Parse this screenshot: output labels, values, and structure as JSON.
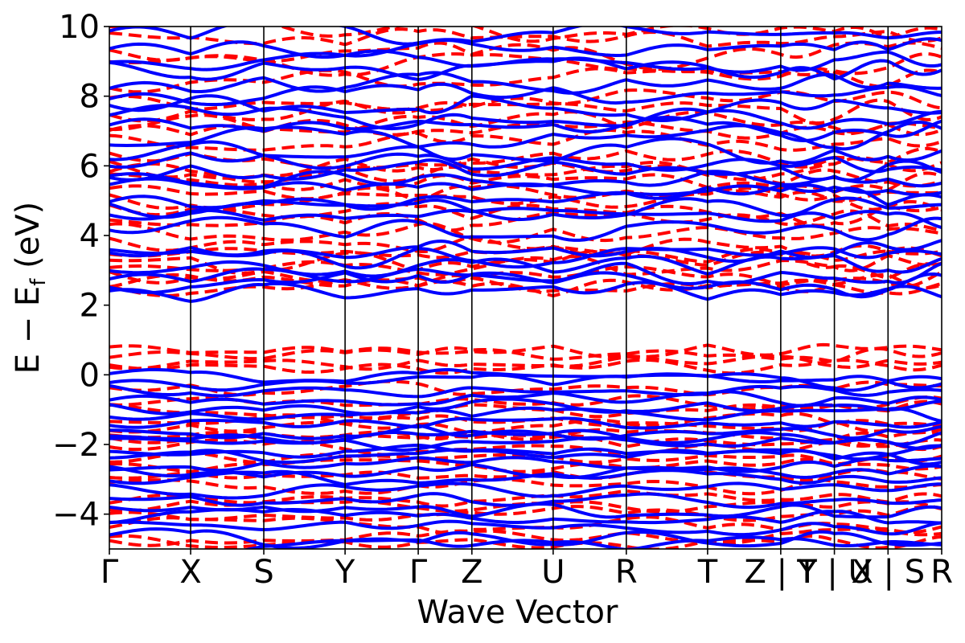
{
  "chart_data": {
    "type": "line",
    "xlabel": "Wave Vector",
    "ylabel_main": "E − E",
    "ylabel_sub": "f",
    "ylabel_unit": " (eV)",
    "ylim": [
      -5,
      10
    ],
    "yticks": [
      -4,
      -2,
      0,
      2,
      4,
      6,
      8,
      10
    ],
    "kpoints": [
      {
        "label": "Γ",
        "pos": 0.0
      },
      {
        "label": "X",
        "pos": 1.0
      },
      {
        "label": "S",
        "pos": 1.9
      },
      {
        "label": "Y",
        "pos": 2.9
      },
      {
        "label": "Γ",
        "pos": 3.8
      },
      {
        "label": "Z",
        "pos": 4.46
      },
      {
        "label": "U",
        "pos": 5.46
      },
      {
        "label": "R",
        "pos": 6.36
      },
      {
        "label": "T",
        "pos": 7.36
      },
      {
        "label": "Z | Y",
        "pos": 8.26
      },
      {
        "label": "T | U",
        "pos": 8.92
      },
      {
        "label": "X | S",
        "pos": 9.58
      },
      {
        "label": "R",
        "pos": 10.24
      }
    ],
    "grid": false,
    "series": [
      {
        "style": "dashed",
        "color": "#ff0000",
        "bands_conduction": [
          2.45,
          2.6,
          2.85,
          3.05,
          3.25,
          3.45,
          3.75,
          4.05,
          4.4,
          4.6,
          5.0,
          5.2,
          5.5,
          5.75,
          6.0,
          6.25,
          6.7,
          7.0,
          7.25,
          7.6,
          7.9,
          8.5,
          8.9,
          9.2,
          9.6,
          9.9
        ],
        "bands_valence": [
          0.7,
          0.55,
          0.4,
          0.25,
          -0.4,
          -0.7,
          -1.0,
          -1.3,
          -1.5,
          -1.7,
          -1.9,
          -2.1,
          -2.4,
          -2.6,
          -2.9,
          -3.2,
          -3.5,
          -3.8,
          -4.0,
          -4.3,
          -4.6,
          -4.8
        ]
      },
      {
        "style": "solid",
        "color": "#0000ff",
        "bands_conduction": [
          2.35,
          2.7,
          2.95,
          3.15,
          3.35,
          3.6,
          4.2,
          4.5,
          4.75,
          5.1,
          5.35,
          5.6,
          5.85,
          6.1,
          6.4,
          6.8,
          7.1,
          7.4,
          7.75,
          8.0,
          8.35,
          8.75,
          9.05,
          9.45,
          9.8
        ],
        "bands_valence": [
          -0.05,
          -0.2,
          -0.45,
          -0.7,
          -0.9,
          -1.15,
          -1.4,
          -1.6,
          -1.8,
          -2.0,
          -2.2,
          -2.35,
          -2.55,
          -2.75,
          -3.0,
          -3.3,
          -3.6,
          -3.9,
          -4.1,
          -4.4,
          -4.7,
          -4.9
        ]
      }
    ]
  }
}
